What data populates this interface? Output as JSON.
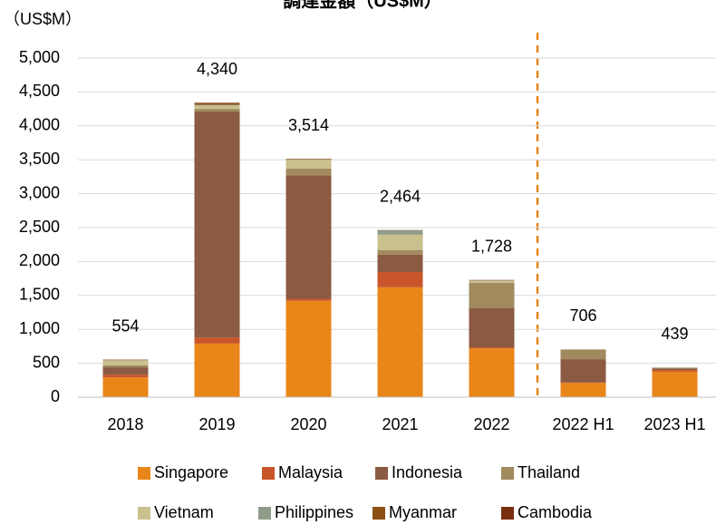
{
  "chart_data": {
    "type": "stacked_bar",
    "title": "調達金額（US$M）",
    "unit_label": "（US$M）",
    "categories": [
      "2018",
      "2019",
      "2020",
      "2021",
      "2022",
      "2022 H1",
      "2023 H1"
    ],
    "series": [
      {
        "name": "Singapore",
        "color": "#e8861a",
        "values": [
          290,
          790,
          1420,
          1620,
          720,
          210,
          375
        ]
      },
      {
        "name": "Malaysia",
        "color": "#c8562a",
        "values": [
          40,
          90,
          30,
          225,
          15,
          10,
          25
        ]
      },
      {
        "name": "Indonesia",
        "color": "#8b5a42",
        "values": [
          110,
          3330,
          1820,
          255,
          575,
          340,
          20
        ]
      },
      {
        "name": "Thailand",
        "color": "#a08a5e",
        "values": [
          30,
          40,
          100,
          70,
          375,
          135,
          10
        ]
      },
      {
        "name": "Vietnam",
        "color": "#c9c08e",
        "values": [
          70,
          50,
          130,
          225,
          30,
          5,
          5
        ]
      },
      {
        "name": "Philippines",
        "color": "#8f9c8a",
        "values": [
          5,
          10,
          5,
          65,
          5,
          3,
          2
        ]
      },
      {
        "name": "Myanmar",
        "color": "#8b5013",
        "values": [
          5,
          20,
          5,
          4,
          5,
          2,
          1
        ]
      },
      {
        "name": "Cambodia",
        "color": "#7a2e10",
        "values": [
          4,
          10,
          4,
          0,
          3,
          1,
          1
        ]
      }
    ],
    "totals": [
      554,
      4340,
      3514,
      2464,
      1728,
      706,
      439
    ],
    "total_labels": [
      "554",
      "4,340",
      "3,514",
      "2,464",
      "1,728",
      "706",
      "439"
    ],
    "ylim": [
      0,
      5000
    ],
    "yticks": [
      0,
      500,
      {
        "value": 1000,
        "label": "1,000"
      },
      {
        "value": 1500,
        "label": "1,500"
      },
      {
        "value": 2000,
        "label": "2,000"
      },
      {
        "value": 2500,
        "label": "2,500"
      },
      {
        "value": 3000,
        "label": "3,000"
      },
      {
        "value": 3500,
        "label": "3,500"
      },
      {
        "value": 4000,
        "label": "4,000"
      },
      {
        "value": 4500,
        "label": "4,500"
      },
      {
        "value": 5000,
        "label": "5,000"
      }
    ],
    "grid": true
  }
}
